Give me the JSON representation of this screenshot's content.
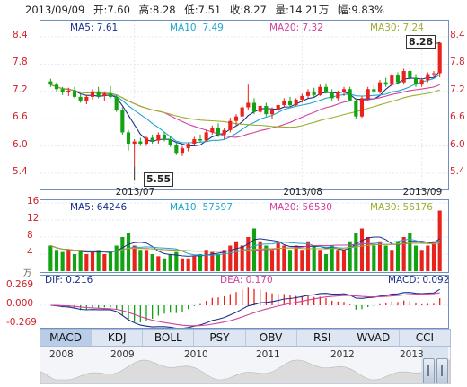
{
  "header": {
    "date": "2013/09/09",
    "open": "开:7.60",
    "high": "高:8.28",
    "low": "低:7.51",
    "close": "收:8.27",
    "volume": "量:14.21万",
    "change": "幅:9.83%"
  },
  "price_panel": {
    "ma5": "MA5: 7.61",
    "ma10": "MA10: 7.49",
    "ma20": "MA20: 7.32",
    "ma30": "MA30: 7.24",
    "y_ticks_left": [
      "8.4",
      "7.8",
      "7.2",
      "6.6",
      "6.0",
      "5.4"
    ],
    "y_ticks_right": [
      "8.4",
      "7.8",
      "7.2",
      "6.6",
      "6.0",
      "5.4"
    ],
    "dates": [
      "2013/07",
      "2013/08",
      "2013/09"
    ],
    "high_callout": "8.28",
    "low_callout": "5.55"
  },
  "volume_panel": {
    "ma5": "MA5: 64246",
    "ma10": "MA10: 57597",
    "ma20": "MA20: 56530",
    "ma30": "MA30: 56176",
    "y_ticks": [
      "16",
      "12",
      "8",
      "4"
    ],
    "unit": "万"
  },
  "macd_panel": {
    "dif": "DIF: 0.216",
    "dea": "DEA: 0.170",
    "macd": "MACD: 0.092",
    "y_ticks": [
      "0.269",
      "0.000",
      "-0.269"
    ]
  },
  "tabs": [
    "MACD",
    "KDJ",
    "BOLL",
    "PSY",
    "OBV",
    "RSI",
    "WVAD",
    "CCI"
  ],
  "active_tab": "MACD",
  "navigator": {
    "years": [
      "2008",
      "2009",
      "2010",
      "2011",
      "2012",
      "2013"
    ]
  },
  "colors": {
    "up": "#e8231c",
    "down": "#12a312",
    "ma5": "#1a2f8c",
    "ma10": "#21a6cf",
    "ma20": "#d4409a",
    "ma30": "#9cae2c",
    "panel_border": "#6e8fc0",
    "label_red": "#d0222a"
  },
  "chart_data": {
    "type": "candlestick",
    "title": "",
    "ylim": [
      5.4,
      8.4
    ],
    "last_bar": {
      "open": 7.6,
      "high": 8.28,
      "low": 7.51,
      "close": 8.27,
      "volume_wan": 14.21
    },
    "candles": [
      [
        7.42,
        7.48,
        7.3,
        7.35
      ],
      [
        7.35,
        7.4,
        7.2,
        7.25
      ],
      [
        7.25,
        7.3,
        7.12,
        7.18
      ],
      [
        7.18,
        7.28,
        7.1,
        7.22
      ],
      [
        7.22,
        7.3,
        7.05,
        7.08
      ],
      [
        7.08,
        7.15,
        6.95,
        7.0
      ],
      [
        7.0,
        7.12,
        6.92,
        7.08
      ],
      [
        7.08,
        7.25,
        7.02,
        7.2
      ],
      [
        7.2,
        7.3,
        7.05,
        7.1
      ],
      [
        7.1,
        7.2,
        6.98,
        7.15
      ],
      [
        7.15,
        7.32,
        7.05,
        7.08
      ],
      [
        7.08,
        7.12,
        6.75,
        6.8
      ],
      [
        6.8,
        6.85,
        6.25,
        6.3
      ],
      [
        6.3,
        6.35,
        5.9,
        6.05
      ],
      [
        6.05,
        6.15,
        5.55,
        6.1
      ],
      [
        6.1,
        6.18,
        6.0,
        6.05
      ],
      [
        6.05,
        6.22,
        6.0,
        6.18
      ],
      [
        6.18,
        6.25,
        6.05,
        6.12
      ],
      [
        6.12,
        6.3,
        6.05,
        6.25
      ],
      [
        6.25,
        6.3,
        6.1,
        6.15
      ],
      [
        6.15,
        6.22,
        5.98,
        6.02
      ],
      [
        6.02,
        6.08,
        5.8,
        5.85
      ],
      [
        5.85,
        6.0,
        5.78,
        5.95
      ],
      [
        5.95,
        6.08,
        5.88,
        6.05
      ],
      [
        6.05,
        6.2,
        6.0,
        6.15
      ],
      [
        6.15,
        6.25,
        6.08,
        6.12
      ],
      [
        6.12,
        6.35,
        6.1,
        6.3
      ],
      [
        6.3,
        6.45,
        6.25,
        6.4
      ],
      [
        6.4,
        6.5,
        6.2,
        6.25
      ],
      [
        6.25,
        6.4,
        6.15,
        6.35
      ],
      [
        6.35,
        6.62,
        6.3,
        6.55
      ],
      [
        6.55,
        6.7,
        6.45,
        6.65
      ],
      [
        6.65,
        6.9,
        6.6,
        6.85
      ],
      [
        6.85,
        7.35,
        6.8,
        6.95
      ],
      [
        6.95,
        7.05,
        6.7,
        6.75
      ],
      [
        6.75,
        6.9,
        6.7,
        6.88
      ],
      [
        6.88,
        6.95,
        6.65,
        6.7
      ],
      [
        6.7,
        6.85,
        6.6,
        6.8
      ],
      [
        6.8,
        6.92,
        6.72,
        6.9
      ],
      [
        6.9,
        7.05,
        6.85,
        7.0
      ],
      [
        7.0,
        7.08,
        6.85,
        6.9
      ],
      [
        6.9,
        7.05,
        6.88,
        7.02
      ],
      [
        7.02,
        7.15,
        6.95,
        7.1
      ],
      [
        7.1,
        7.25,
        7.05,
        7.2
      ],
      [
        7.2,
        7.28,
        7.08,
        7.12
      ],
      [
        7.12,
        7.35,
        7.1,
        7.3
      ],
      [
        7.3,
        7.38,
        7.15,
        7.18
      ],
      [
        7.18,
        7.25,
        7.0,
        7.05
      ],
      [
        7.05,
        7.22,
        7.0,
        7.18
      ],
      [
        7.18,
        7.3,
        7.1,
        7.25
      ],
      [
        7.25,
        7.3,
        6.98,
        7.0
      ],
      [
        7.0,
        7.05,
        6.6,
        6.65
      ],
      [
        6.65,
        7.1,
        6.62,
        7.05
      ],
      [
        7.05,
        7.3,
        7.0,
        7.25
      ],
      [
        7.25,
        7.35,
        7.15,
        7.2
      ],
      [
        7.2,
        7.45,
        7.15,
        7.4
      ],
      [
        7.4,
        7.5,
        7.3,
        7.35
      ],
      [
        7.35,
        7.6,
        7.3,
        7.55
      ],
      [
        7.55,
        7.62,
        7.35,
        7.4
      ],
      [
        7.4,
        7.7,
        7.35,
        7.65
      ],
      [
        7.65,
        7.72,
        7.45,
        7.5
      ],
      [
        7.5,
        7.58,
        7.3,
        7.35
      ],
      [
        7.35,
        7.5,
        7.3,
        7.45
      ],
      [
        7.45,
        7.62,
        7.4,
        7.58
      ],
      [
        7.58,
        7.65,
        7.5,
        7.6
      ],
      [
        7.6,
        8.28,
        7.51,
        8.27
      ]
    ],
    "volumes": [
      6,
      5,
      4.5,
      5,
      4,
      5,
      4,
      4.5,
      5,
      4,
      4.5,
      6,
      8,
      9,
      6,
      5,
      5,
      4,
      3.5,
      3,
      4,
      4.5,
      3,
      3,
      3.5,
      4,
      5,
      4.5,
      4,
      5,
      6,
      7,
      6,
      8,
      10,
      7,
      6,
      5,
      7,
      6,
      5,
      6,
      5,
      7,
      6,
      5,
      4,
      6,
      5,
      5,
      7,
      9,
      10,
      8,
      6,
      7,
      6,
      5,
      7,
      8,
      9,
      6,
      5,
      6,
      7,
      14.21
    ],
    "macd": {
      "dif_last": 0.216,
      "dea_last": 0.17,
      "macd_last": 0.092
    }
  }
}
